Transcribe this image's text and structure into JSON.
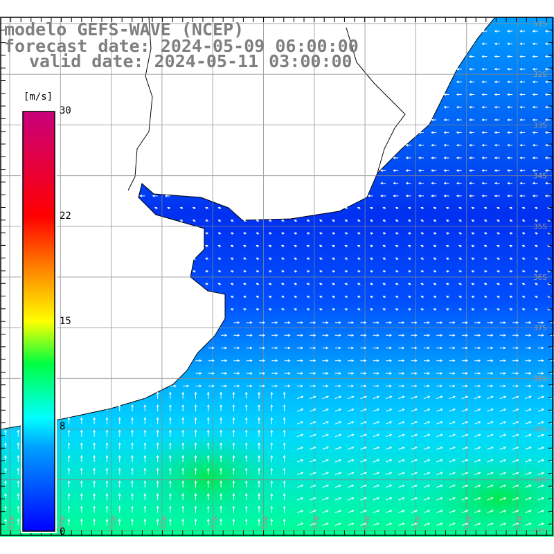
{
  "title": {
    "line1": "modelo GEFS-WAVE (NCEP)",
    "line2": "forecast date: 2024-05-09 06:00:00",
    "line3": "valid date: 2024-05-11 03:00:00"
  },
  "colorbar": {
    "unit": "[m/s]",
    "min": 0,
    "max": 30,
    "tick_labels": [
      "30",
      "22",
      "15",
      "8",
      "0"
    ],
    "tick_values": [
      30,
      22,
      15,
      8,
      0
    ],
    "colors": [
      "#0000ff",
      "#00aaff",
      "#00ffff",
      "#00ff00",
      "#ffff00",
      "#ff8800",
      "#ff0000",
      "#c00080"
    ]
  },
  "map": {
    "lon_labels": [
      "61W",
      "60W",
      "59W",
      "58W",
      "57W",
      "56W",
      "55W",
      "54W",
      "53W",
      "52W",
      "51W"
    ],
    "lat_labels": [
      "31S",
      "32S",
      "33S",
      "34S",
      "35S",
      "36S",
      "37S",
      "38S",
      "39S",
      "40S",
      "41S"
    ],
    "ocean_colors": {
      "north": "#1c5cff",
      "mid": "#00a8ff",
      "south": "#00e0c0"
    }
  }
}
